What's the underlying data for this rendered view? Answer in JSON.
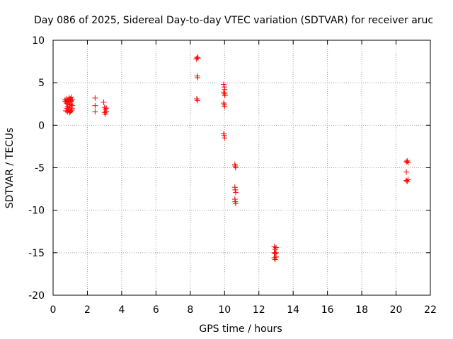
{
  "chart_data": {
    "type": "scatter",
    "title": "Day 086 of 2025, Sidereal Day-to-day VTEC variation (SDTVAR) for receiver aruc",
    "xlabel": "GPS time / hours",
    "ylabel": "SDTVAR / TECUs",
    "xlim": [
      0,
      22
    ],
    "ylim": [
      -20,
      10
    ],
    "x_ticks": [
      0,
      2,
      4,
      6,
      8,
      10,
      12,
      14,
      16,
      18,
      20,
      22
    ],
    "y_ticks": [
      -20,
      -15,
      -10,
      -5,
      0,
      5,
      10
    ],
    "x_tick_labels": [
      "0",
      "2",
      "4",
      "6",
      "8",
      "10",
      "12",
      "14",
      "16",
      "18",
      "20",
      "22"
    ],
    "y_tick_labels": [
      "-20",
      "-15",
      "-10",
      "-5",
      "0",
      "5",
      "10"
    ],
    "grid": true,
    "marker": "+",
    "color": "#ff0000",
    "series": [
      {
        "name": "SDTVAR",
        "points": [
          [
            0.7,
            3.0
          ],
          [
            0.72,
            2.8
          ],
          [
            0.75,
            1.7
          ],
          [
            0.78,
            2.6
          ],
          [
            0.8,
            3.1
          ],
          [
            0.82,
            2.9
          ],
          [
            0.84,
            1.6
          ],
          [
            0.86,
            2.2
          ],
          [
            0.88,
            3.0
          ],
          [
            0.9,
            1.8
          ],
          [
            0.92,
            2.7
          ],
          [
            0.94,
            3.2
          ],
          [
            0.96,
            1.5
          ],
          [
            0.98,
            2.4
          ],
          [
            1.0,
            3.1
          ],
          [
            1.02,
            2.9
          ],
          [
            1.04,
            1.7
          ],
          [
            1.06,
            2.5
          ],
          [
            1.08,
            3.3
          ],
          [
            1.1,
            2.0
          ],
          [
            1.12,
            3.0
          ],
          [
            1.0,
            1.6
          ],
          [
            1.05,
            2.8
          ],
          [
            1.1,
            1.8
          ],
          [
            0.8,
            2.0
          ],
          [
            0.85,
            2.5
          ],
          [
            0.95,
            2.1
          ],
          [
            1.12,
            2.3
          ],
          [
            2.45,
            3.2
          ],
          [
            2.45,
            2.3
          ],
          [
            2.45,
            1.6
          ],
          [
            2.95,
            2.7
          ],
          [
            3.0,
            2.1
          ],
          [
            3.0,
            1.5
          ],
          [
            3.05,
            1.8
          ],
          [
            3.05,
            1.3
          ],
          [
            3.1,
            2.0
          ],
          [
            3.1,
            1.6
          ],
          [
            8.35,
            7.8
          ],
          [
            8.4,
            8.0
          ],
          [
            8.45,
            7.9
          ],
          [
            8.4,
            5.8
          ],
          [
            8.42,
            5.6
          ],
          [
            8.38,
            3.1
          ],
          [
            8.42,
            2.9
          ],
          [
            9.95,
            4.8
          ],
          [
            9.98,
            4.5
          ],
          [
            10.0,
            4.2
          ],
          [
            9.95,
            3.9
          ],
          [
            10.0,
            3.7
          ],
          [
            10.02,
            3.5
          ],
          [
            9.95,
            2.6
          ],
          [
            9.98,
            2.4
          ],
          [
            10.0,
            2.2
          ],
          [
            9.95,
            -1.0
          ],
          [
            9.98,
            -1.2
          ],
          [
            10.0,
            -1.5
          ],
          [
            10.6,
            -4.6
          ],
          [
            10.62,
            -4.8
          ],
          [
            10.65,
            -5.0
          ],
          [
            10.6,
            -7.3
          ],
          [
            10.62,
            -7.6
          ],
          [
            10.65,
            -7.9
          ],
          [
            10.6,
            -8.7
          ],
          [
            10.62,
            -9.0
          ],
          [
            10.65,
            -9.2
          ],
          [
            12.9,
            -14.3
          ],
          [
            12.95,
            -14.6
          ],
          [
            13.0,
            -14.4
          ],
          [
            12.9,
            -15.0
          ],
          [
            12.95,
            -15.1
          ],
          [
            13.0,
            -15.0
          ],
          [
            12.9,
            -15.6
          ],
          [
            12.95,
            -15.8
          ],
          [
            13.0,
            -15.5
          ],
          [
            20.6,
            -4.3
          ],
          [
            20.65,
            -4.2
          ],
          [
            20.7,
            -4.4
          ],
          [
            20.6,
            -5.5
          ],
          [
            20.6,
            -6.5
          ],
          [
            20.65,
            -6.6
          ],
          [
            20.7,
            -6.4
          ]
        ]
      }
    ]
  }
}
